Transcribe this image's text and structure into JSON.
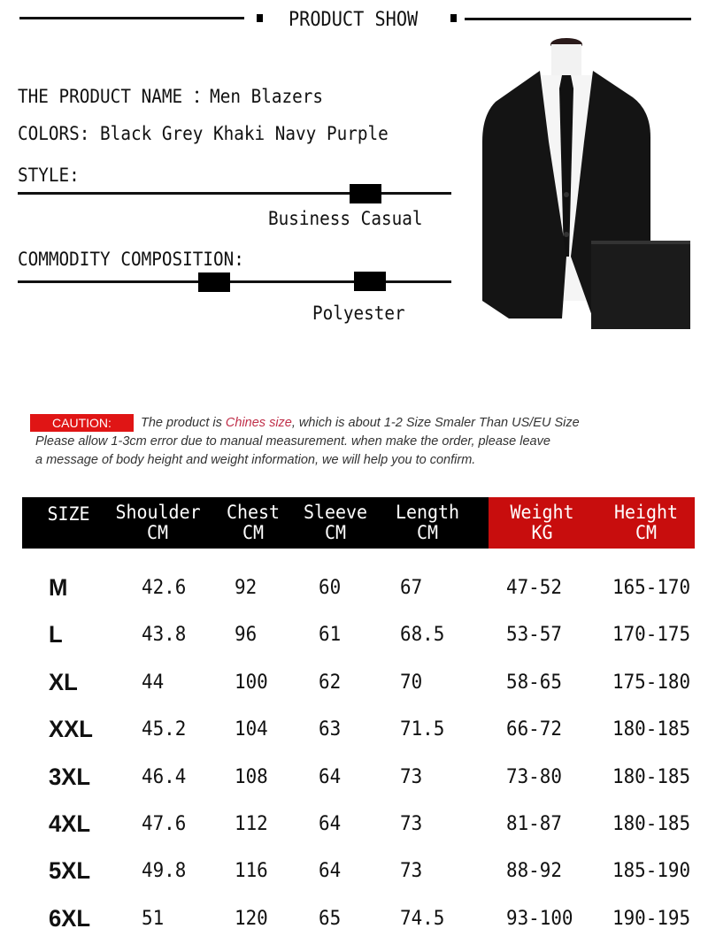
{
  "header": {
    "title": "PRODUCT SHOW"
  },
  "specs": {
    "product_name": "THE PRODUCT NAME ：Men Blazers",
    "colors": "COLORS:  Black Grey Khaki Navy Purple",
    "style_label": "STYLE:",
    "style_value": "Business Casual",
    "composition_label": "COMMODITY COMPOSITION:",
    "composition_value": "Polyester"
  },
  "caution": {
    "badge": "CAUTION:",
    "line1_pre": "The product is ",
    "line1_highlight": "Chines size",
    "line1_post": ", which is about 1-2 Size Smaler Than  US/EU Size",
    "line2": "Please allow 1-3cm error due to manual measurement. when make the order, please leave",
    "line3": "a message of body height and weight information, we will help you to confirm.",
    "highlight_color": "#c0304a",
    "badge_color": "#e01515"
  },
  "table": {
    "headers": [
      {
        "name": "SIZE",
        "unit": ""
      },
      {
        "name": "Shoulder",
        "unit": "CM"
      },
      {
        "name": "Chest",
        "unit": "CM"
      },
      {
        "name": "Sleeve",
        "unit": "CM"
      },
      {
        "name": "Length",
        "unit": "CM"
      },
      {
        "name": "Weight",
        "unit": "KG"
      },
      {
        "name": "Height",
        "unit": "CM"
      }
    ],
    "rows": [
      [
        "M",
        "42.6",
        "92",
        "60",
        "67",
        "47-52",
        "165-170"
      ],
      [
        "L",
        "43.8",
        "96",
        "61",
        "68.5",
        "53-57",
        "170-175"
      ],
      [
        "XL",
        "44",
        "100",
        "62",
        "70",
        "58-65",
        "175-180"
      ],
      [
        "XXL",
        "45.2",
        "104",
        "63",
        "71.5",
        "66-72",
        "180-185"
      ],
      [
        "3XL",
        "46.4",
        "108",
        "64",
        "73",
        "73-80",
        "180-185"
      ],
      [
        "4XL",
        "47.6",
        "112",
        "64",
        "73",
        "81-87",
        "180-185"
      ],
      [
        "5XL",
        "49.8",
        "116",
        "64",
        "73",
        "88-92",
        "185-190"
      ],
      [
        "6XL",
        "51",
        "120",
        "65",
        "74.5",
        "93-100",
        "190-195"
      ]
    ],
    "header_color": "#000000",
    "accent_header_color": "#c80d0d"
  }
}
